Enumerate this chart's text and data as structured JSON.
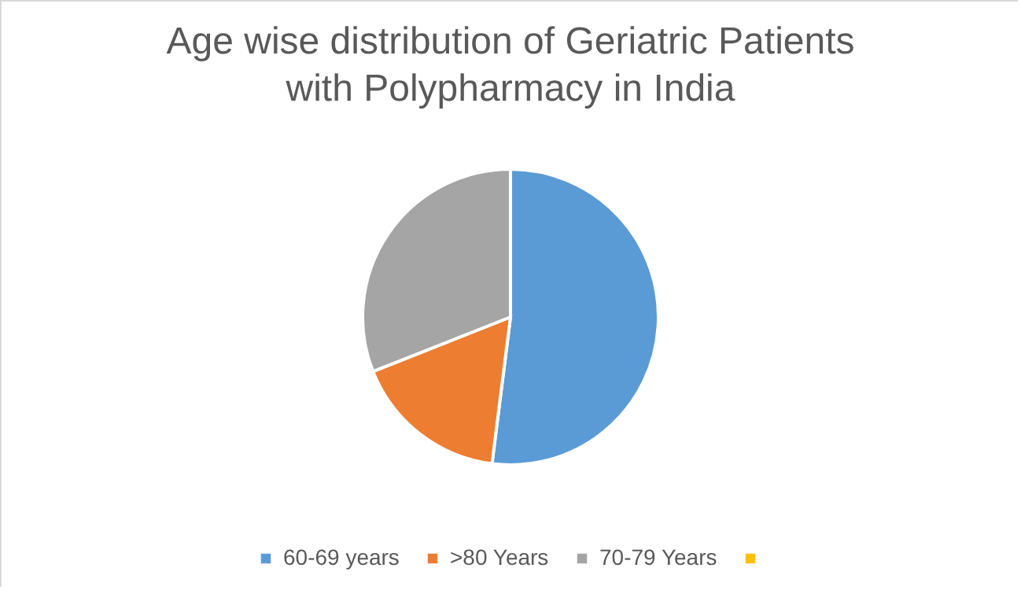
{
  "chart_data": {
    "type": "pie",
    "title": "Age wise distribution of Geriatric Patients with Polypharmacy in India",
    "categories": [
      "60-69 years",
      ">80 Years",
      "70-79 Years",
      null
    ],
    "values": [
      52,
      17,
      31,
      0
    ],
    "colors": [
      "#5b9bd5",
      "#ed7d31",
      "#a5a5a5",
      "#ffc000"
    ],
    "legend": "bottom"
  }
}
